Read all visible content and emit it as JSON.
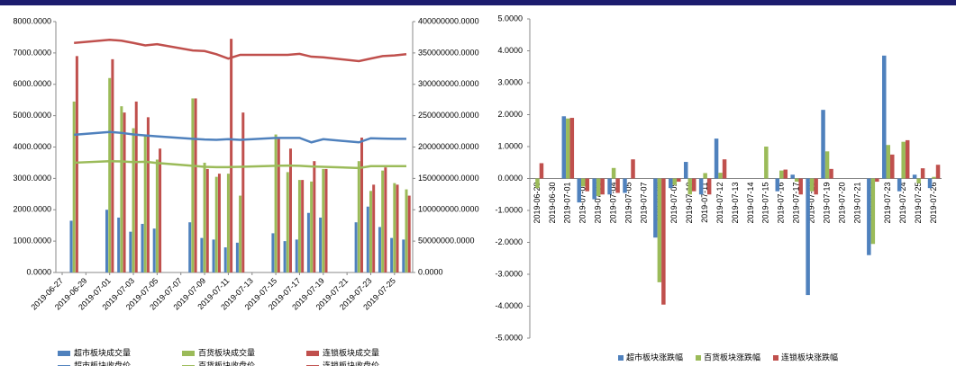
{
  "chart_data": [
    {
      "type": "combo",
      "x": [
        "2019-06-28",
        "2019-07-01",
        "2019-07-02",
        "2019-07-03",
        "2019-07-04",
        "2019-07-05",
        "2019-07-08",
        "2019-07-09",
        "2019-07-10",
        "2019-07-11",
        "2019-07-12",
        "2019-07-15",
        "2019-07-16",
        "2019-07-17",
        "2019-07-18",
        "2019-07-19",
        "2019-07-22",
        "2019-07-23",
        "2019-07-24",
        "2019-07-25",
        "2019-07-26"
      ],
      "xlim": [
        "2019-06-27",
        "2019-07-26"
      ],
      "xticks": [
        "2019-06-27",
        "2019-06-29",
        "2019-07-01",
        "2019-07-03",
        "2019-07-05",
        "2019-07-07",
        "2019-07-09",
        "2019-07-11",
        "2019-07-13",
        "2019-07-15",
        "2019-07-17",
        "2019-07-19",
        "2019-07-21",
        "2019-07-23",
        "2019-07-25"
      ],
      "ylim": [
        0,
        8000
      ],
      "yticks": [
        {
          "value": 0,
          "label": "0.0000"
        },
        {
          "value": 1000,
          "label": "1000.0000"
        },
        {
          "value": 2000,
          "label": "2000.0000"
        },
        {
          "value": 3000,
          "label": "3000.0000"
        },
        {
          "value": 4000,
          "label": "4000.0000"
        },
        {
          "value": 5000,
          "label": "5000.0000"
        },
        {
          "value": 6000,
          "label": "6000.0000"
        },
        {
          "value": 7000,
          "label": "7000.0000"
        },
        {
          "value": 8000,
          "label": "8000.0000"
        }
      ],
      "y2lim": [
        0,
        400000000
      ],
      "y2ticks": [
        {
          "value": 0,
          "label": "0.0000"
        },
        {
          "value": 50000000,
          "label": "50000000.0000"
        },
        {
          "value": 100000000,
          "label": "100000000.0000"
        },
        {
          "value": 150000000,
          "label": "150000000.0000"
        },
        {
          "value": 200000000,
          "label": "200000000.0000"
        },
        {
          "value": 250000000,
          "label": "250000000.0000"
        },
        {
          "value": 300000000,
          "label": "300000000.0000"
        },
        {
          "value": 350000000,
          "label": "350000000.0000"
        },
        {
          "value": 400000000,
          "label": "400000000.0000"
        }
      ],
      "series": [
        {
          "name": "超市板块成交量",
          "type": "bar",
          "axis": "y2",
          "color": "#4f81bd",
          "values": [
            82500000,
            100000000,
            87500000,
            65000000,
            77500000,
            70000000,
            80000000,
            55000000,
            52500000,
            40000000,
            47500000,
            62500000,
            50000000,
            52500000,
            95000000,
            87500000,
            80000000,
            105000000,
            72500000,
            55000000,
            52500000
          ]
        },
        {
          "name": "百货板块成交量",
          "type": "bar",
          "axis": "y2",
          "color": "#9bbb59",
          "values": [
            272500000,
            310000000,
            265000000,
            230000000,
            217500000,
            180000000,
            277500000,
            175000000,
            152500000,
            157500000,
            122500000,
            220000000,
            160000000,
            147500000,
            145000000,
            165000000,
            177500000,
            130000000,
            162500000,
            142500000,
            132500000
          ]
        },
        {
          "name": "连锁板块成交量",
          "type": "bar",
          "axis": "y2",
          "color": "#c0504d",
          "values": [
            345000000,
            340000000,
            255000000,
            272500000,
            247500000,
            197500000,
            277500000,
            165000000,
            157500000,
            372500000,
            255000000,
            215000000,
            197500000,
            147500000,
            177500000,
            165000000,
            215000000,
            140000000,
            167500000,
            140000000,
            122500000
          ]
        },
        {
          "name": "超市板块收盘价",
          "type": "line",
          "color": "#4f81bd",
          "values": [
            4390,
            4480,
            4450,
            4400,
            4370,
            4340,
            4260,
            4240,
            4230,
            4250,
            4230,
            4290,
            4290,
            4290,
            4150,
            4250,
            4150,
            4280,
            4270,
            4260,
            4260
          ]
        },
        {
          "name": "百货板块收盘价",
          "type": "line",
          "color": "#9bbb59",
          "values": [
            3500,
            3550,
            3540,
            3520,
            3530,
            3490,
            3400,
            3370,
            3360,
            3360,
            3370,
            3400,
            3410,
            3400,
            3380,
            3370,
            3330,
            3390,
            3390,
            3390,
            3390
          ]
        },
        {
          "name": "连锁板块收盘价",
          "type": "line",
          "color": "#c0504d",
          "values": [
            7320,
            7420,
            7390,
            7320,
            7240,
            7280,
            7080,
            7060,
            6960,
            6820,
            6940,
            6940,
            6940,
            6970,
            6880,
            6860,
            6740,
            6820,
            6900,
            6920,
            6960
          ]
        }
      ]
    },
    {
      "type": "bar",
      "categories": [
        "2019-06-28",
        "2019-06-30",
        "2019-07-01",
        "2019-07-02",
        "2019-07-03",
        "2019-07-04",
        "2019-07-05",
        "2019-07-07",
        "2019-07-08",
        "2019-07-09",
        "2019-07-10",
        "2019-07-11",
        "2019-07-12",
        "2019-07-13",
        "2019-07-14",
        "2019-07-15",
        "2019-07-16",
        "2019-07-17",
        "2019-07-18",
        "2019-07-19",
        "2019-07-20",
        "2019-07-21",
        "2019-07-22",
        "2019-07-23",
        "2019-07-24",
        "2019-07-25",
        "2019-07-26"
      ],
      "ylim": [
        -5,
        5
      ],
      "yticks": [
        {
          "value": -5,
          "label": "-5.0000"
        },
        {
          "value": -4,
          "label": "-4.0000"
        },
        {
          "value": -3,
          "label": "-3.0000"
        },
        {
          "value": -2,
          "label": "-2.0000"
        },
        {
          "value": -1,
          "label": "-1.0000"
        },
        {
          "value": 0,
          "label": "0.0000"
        },
        {
          "value": 1,
          "label": "1.0000"
        },
        {
          "value": 2,
          "label": "2.0000"
        },
        {
          "value": 3,
          "label": "3.0000"
        },
        {
          "value": 4,
          "label": "4.0000"
        },
        {
          "value": 5,
          "label": "5.0000"
        }
      ],
      "series": [
        {
          "name": "超市板块涨跌幅",
          "color": "#4f81bd",
          "values": [
            0,
            null,
            1.95,
            -0.75,
            -0.65,
            -0.5,
            -0.45,
            null,
            -1.85,
            -0.3,
            0.52,
            -0.5,
            1.25,
            null,
            null,
            0,
            -0.4,
            0.12,
            -3.65,
            2.15,
            null,
            null,
            -2.4,
            3.85,
            -0.4,
            0.12,
            -0.3
          ]
        },
        {
          "name": "百货板块涨跌幅",
          "color": "#9bbb59",
          "values": [
            -0.3,
            null,
            1.88,
            -0.25,
            -0.55,
            0.33,
            0,
            null,
            -3.25,
            -0.2,
            -0.5,
            0.17,
            0.18,
            null,
            null,
            1.0,
            0.25,
            -0.1,
            -0.4,
            0.85,
            null,
            null,
            -2.05,
            1.05,
            1.15,
            -0.15,
            0.05
          ]
        },
        {
          "name": "连锁板块涨跌幅",
          "color": "#c0504d",
          "values": [
            0.48,
            null,
            1.9,
            -0.4,
            -0.5,
            -0.45,
            0.6,
            null,
            -3.95,
            -0.1,
            -0.4,
            -0.5,
            0.6,
            null,
            null,
            0,
            0.28,
            -0.5,
            -0.5,
            0.3,
            null,
            null,
            -0.1,
            0.75,
            1.2,
            0.32,
            0.43
          ]
        }
      ]
    }
  ]
}
